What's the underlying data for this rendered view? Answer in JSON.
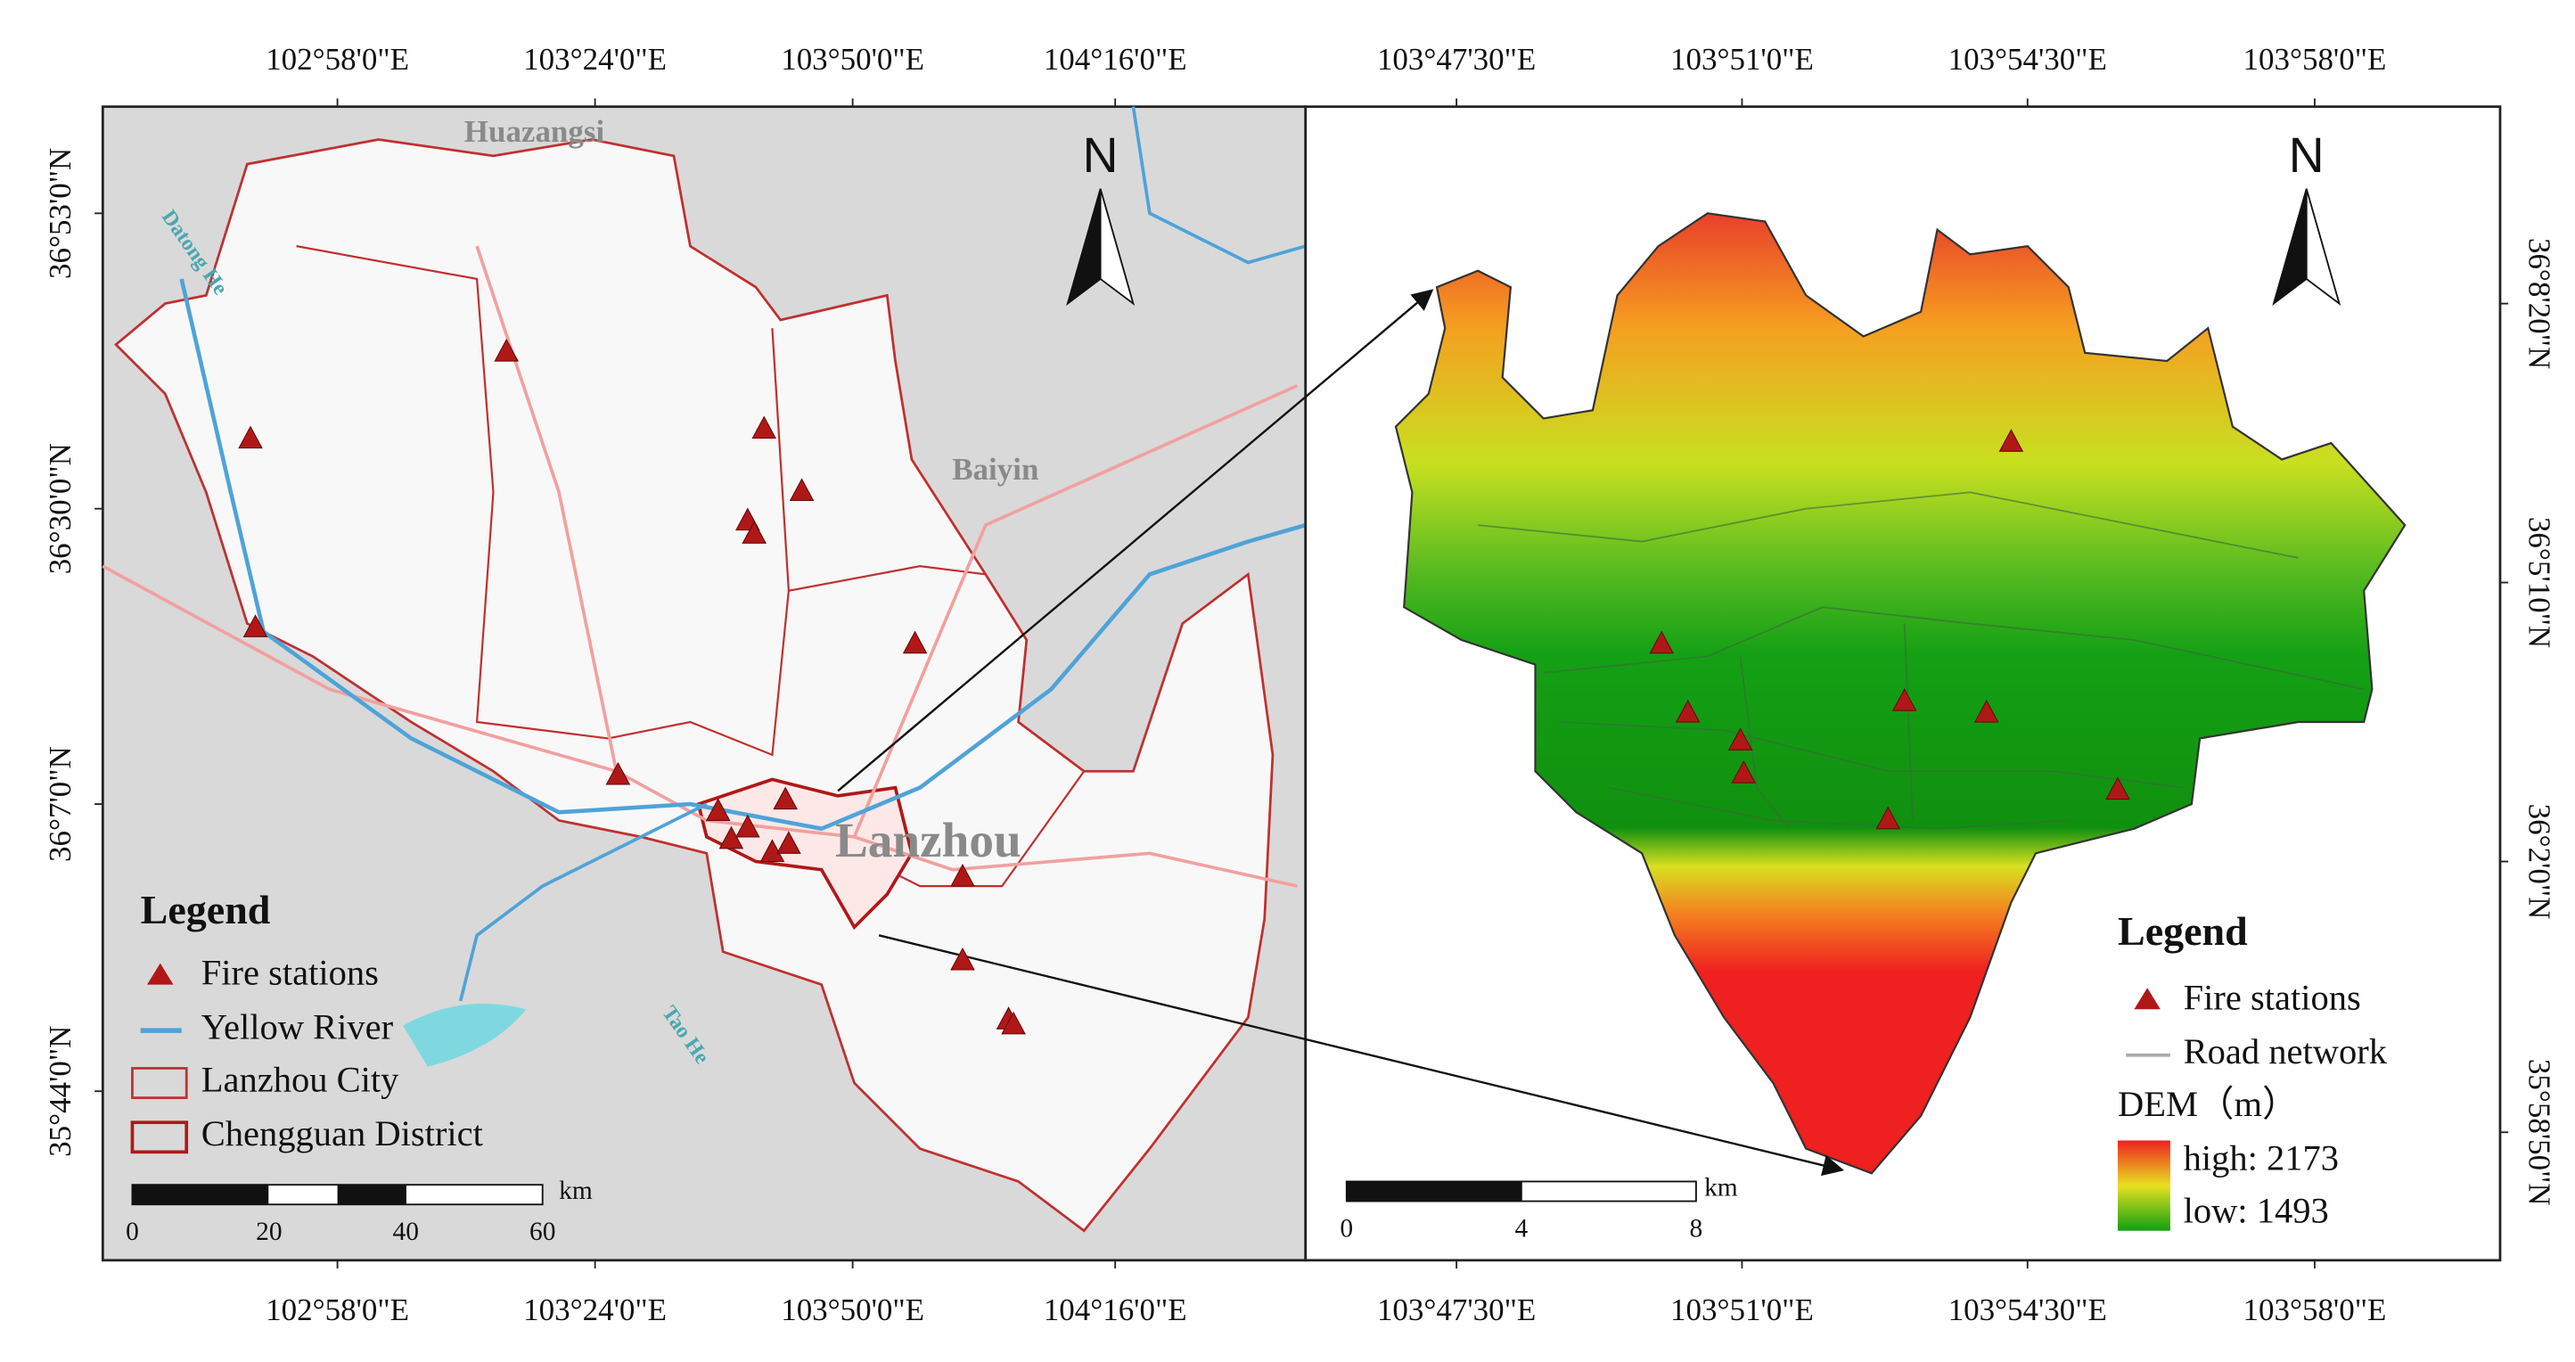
{
  "left_map": {
    "top_axis": [
      "102°58'0\"E",
      "103°24'0\"E",
      "103°50'0\"E",
      "104°16'0\"E"
    ],
    "bottom_axis": [
      "102°58'0\"E",
      "103°24'0\"E",
      "103°50'0\"E",
      "104°16'0\"E"
    ],
    "left_axis": [
      "36°53'0\"N",
      "36°30'0\"N",
      "36°7'0\"N",
      "35°44'0\"N"
    ],
    "places": {
      "huazangsi": "Huazangsi",
      "baiyin": "Baiyin",
      "lanzhou": "Lanzhou",
      "datong_he": "Datong He",
      "tao_he": "Tao He"
    },
    "north": "N",
    "legend": {
      "title": "Legend",
      "items": [
        "Fire stations",
        "Yellow River",
        "Lanzhou City",
        "Chengguan District"
      ]
    },
    "scale": {
      "ticks": [
        0,
        20,
        40,
        60
      ],
      "unit": "km"
    }
  },
  "right_map": {
    "top_axis": [
      "103°47'30\"E",
      "103°51'0\"E",
      "103°54'30\"E",
      "103°58'0\"E"
    ],
    "bottom_axis": [
      "103°47'30\"E",
      "103°51'0\"E",
      "103°54'30\"E",
      "103°58'0\"E"
    ],
    "right_axis": [
      "36°8'20\"N",
      "36°5'10\"N",
      "36°2'0\"N",
      "35°58'50\"N"
    ],
    "north": "N",
    "legend": {
      "title": "Legend",
      "items": [
        "Fire stations",
        "Road network"
      ],
      "dem_title": "DEM（m）",
      "dem_high": "high: 2173",
      "dem_low": "low:  1493"
    },
    "scale": {
      "ticks": [
        0,
        4,
        8
      ],
      "unit": "km"
    }
  }
}
